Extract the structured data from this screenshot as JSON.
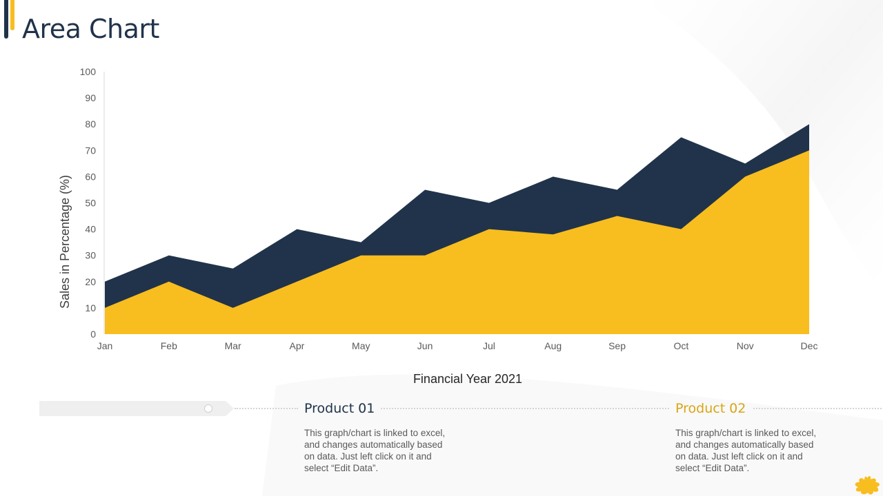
{
  "page": {
    "title": "Area Chart"
  },
  "chart_data": {
    "type": "area",
    "categories": [
      "Jan",
      "Feb",
      "Mar",
      "Apr",
      "May",
      "Jun",
      "Jul",
      "Aug",
      "Sep",
      "Oct",
      "Nov",
      "Dec"
    ],
    "series": [
      {
        "name": "Product 01",
        "values": [
          20,
          30,
          25,
          40,
          35,
          55,
          50,
          60,
          55,
          75,
          65,
          80
        ],
        "color": "#20334a"
      },
      {
        "name": "Product 02",
        "values": [
          10,
          20,
          10,
          20,
          30,
          30,
          40,
          38,
          45,
          40,
          60,
          70
        ],
        "color": "#f8bd1f"
      }
    ],
    "title": "",
    "xlabel": "Financial Year 2021",
    "ylabel": "Sales in Percentage (%)",
    "ylim": [
      0,
      100
    ],
    "yticks": [
      0,
      10,
      20,
      30,
      40,
      50,
      60,
      70,
      80,
      90,
      100
    ],
    "grid": false,
    "legend": "none",
    "stacked": false
  },
  "products": [
    {
      "title": "Product 01",
      "color": "#20334a",
      "description": "This graph/chart is linked to excel, and changes automatically based on data. Just left click on it and select “Edit Data”."
    },
    {
      "title": "Product 02",
      "color": "#d9a514",
      "description": "This graph/chart is linked to excel, and changes automatically based on data. Just left click on it and select “Edit Data”."
    }
  ],
  "colors": {
    "accent_dark": "#20334a",
    "accent_yellow": "#f8bd1f"
  },
  "decor": {
    "corner_icon": "splash-icon"
  }
}
